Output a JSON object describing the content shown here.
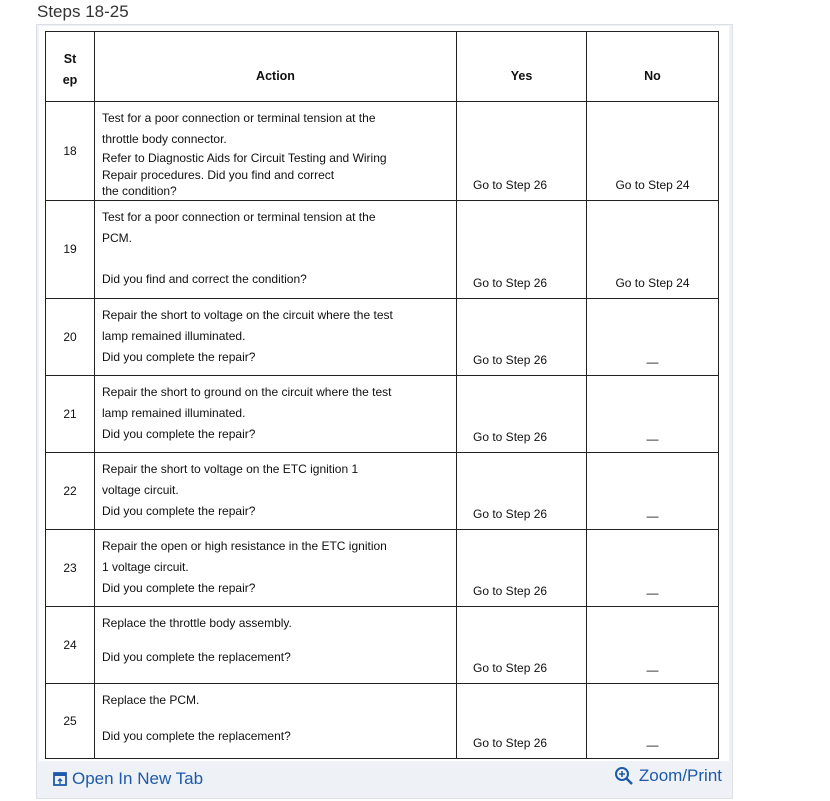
{
  "title": "Steps 18-25",
  "table": {
    "headers": {
      "step": "St ep",
      "step_line1": "St",
      "step_line2": "ep",
      "action": "Action",
      "yes": "Yes",
      "no": "No"
    },
    "rows": [
      {
        "step": "18",
        "action": [
          "Test for a poor connection or terminal tension at the",
          "throttle body connector.",
          "Refer to Diagnostic Aids for Circuit Testing and Wiring",
          "Repair procedures. Did you find and correct",
          "the condition?"
        ],
        "yes": "Go to Step 26",
        "no": "Go to Step 24"
      },
      {
        "step": "19",
        "action": [
          "Test for a poor connection or terminal tension at the",
          "PCM.",
          "Did you find and correct the condition?"
        ],
        "yes": "Go to Step 26",
        "no": "Go to Step 24"
      },
      {
        "step": "20",
        "action": [
          "Repair the short to voltage on the circuit where the test",
          "lamp remained illuminated.",
          "Did you complete the repair?"
        ],
        "yes": "Go to Step 26",
        "no": "—"
      },
      {
        "step": "21",
        "action": [
          "Repair the short to ground on the circuit where the test",
          "lamp remained illuminated.",
          "Did you complete the repair?"
        ],
        "yes": "Go to Step 26",
        "no": "—"
      },
      {
        "step": "22",
        "action": [
          "Repair the short to voltage on the ETC ignition 1",
          "voltage circuit.",
          "Did you complete the repair?"
        ],
        "yes": "Go to Step 26",
        "no": "—"
      },
      {
        "step": "23",
        "action": [
          "Repair the open or high resistance in the ETC ignition",
          "1 voltage circuit.",
          "Did you complete the repair?"
        ],
        "yes": "Go to Step 26",
        "no": "—"
      },
      {
        "step": "24",
        "action": [
          "Replace the throttle body assembly.",
          "Did you complete the replacement?"
        ],
        "yes": "Go to Step 26",
        "no": "—"
      },
      {
        "step": "25",
        "action": [
          "Replace the PCM.",
          "Did you complete the replacement?"
        ],
        "yes": "Go to Step 26",
        "no": "—"
      }
    ]
  },
  "footer": {
    "open_label": "Open In New Tab",
    "open_icon": "open-in-new-tab-icon",
    "zoom_label": "Zoom/Print",
    "zoom_icon": "zoom-in-icon",
    "link_color": "#1e5aa8"
  }
}
